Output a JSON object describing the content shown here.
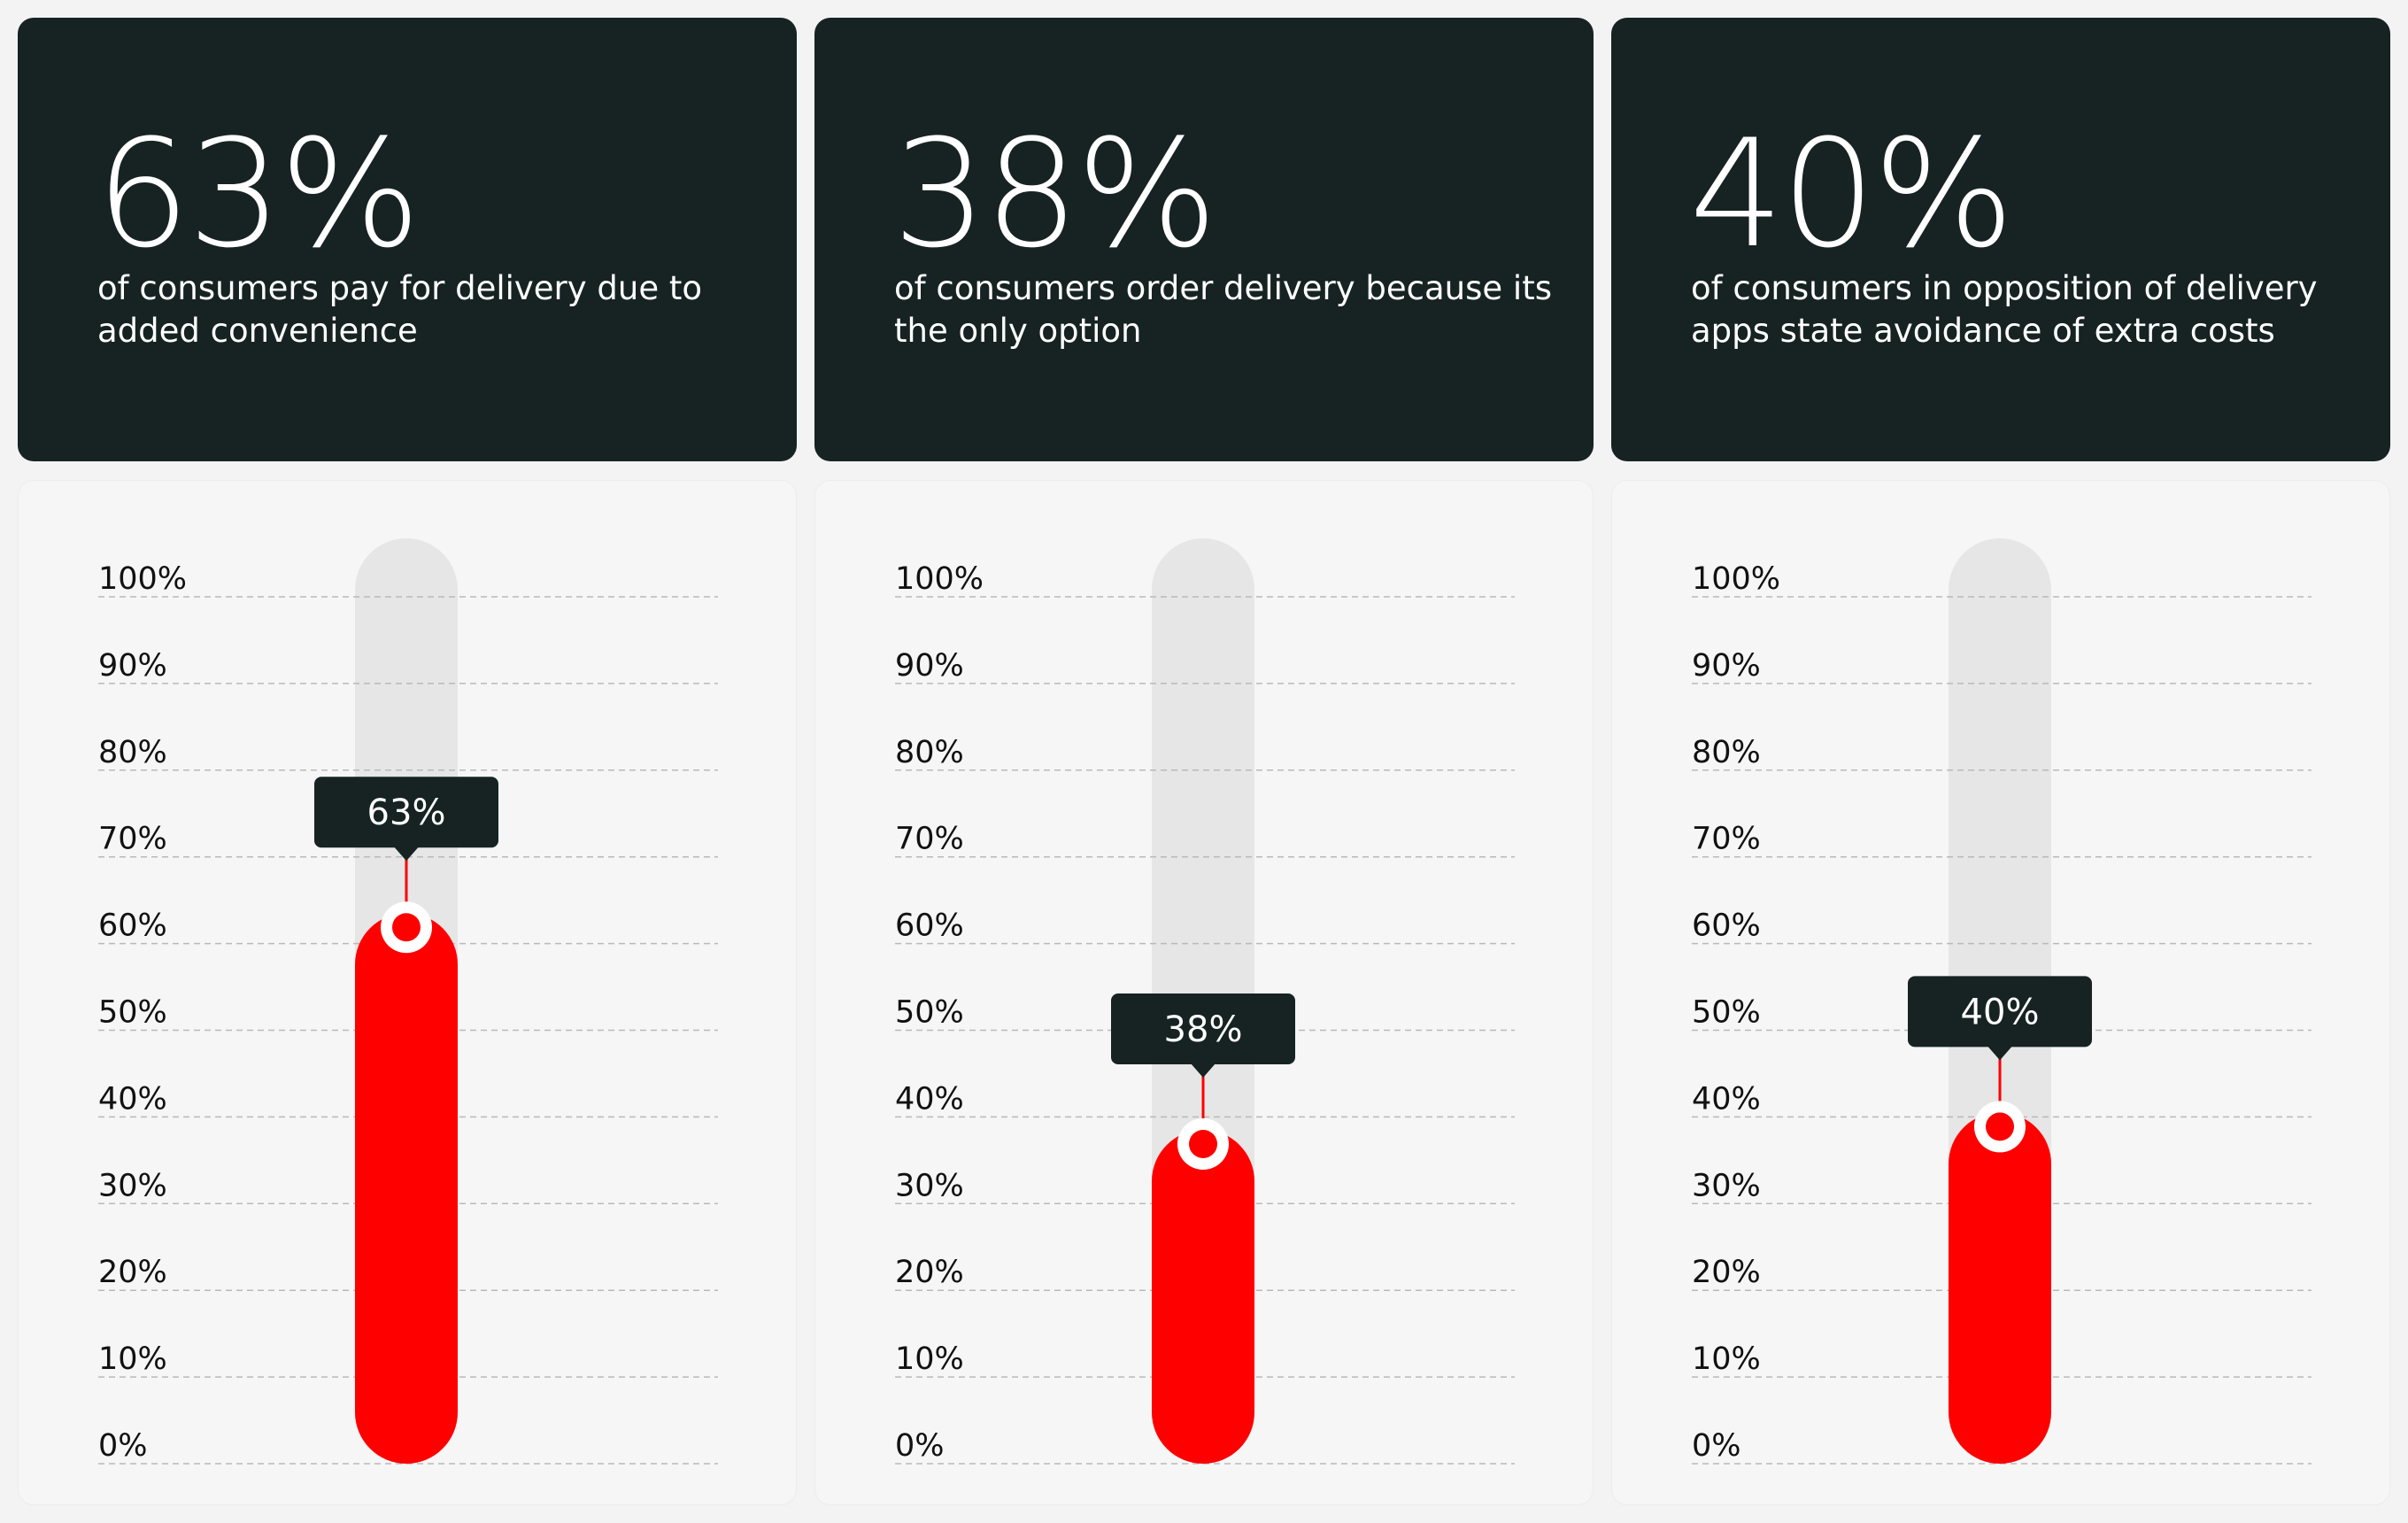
{
  "accent_color": "#ff0000",
  "dark_color": "#172323",
  "track_color": "#e6e6e6",
  "stats": [
    {
      "value": "63%",
      "description": "of consumers pay for delivery due to added convenience"
    },
    {
      "value": "38%",
      "description": "of consumers order delivery because its the only option"
    },
    {
      "value": "40%",
      "description": "of consumers in opposition of delivery apps state avoidance of extra costs"
    }
  ],
  "chart_data": [
    {
      "type": "bar",
      "values": [
        63
      ],
      "value_label": "63%",
      "ylim": [
        0,
        100
      ],
      "yticks": [
        "0%",
        "10%",
        "20%",
        "30%",
        "40%",
        "50%",
        "60%",
        "70%",
        "80%",
        "90%",
        "100%"
      ],
      "grid": true
    },
    {
      "type": "bar",
      "values": [
        38
      ],
      "value_label": "38%",
      "ylim": [
        0,
        100
      ],
      "yticks": [
        "0%",
        "10%",
        "20%",
        "30%",
        "40%",
        "50%",
        "60%",
        "70%",
        "80%",
        "90%",
        "100%"
      ],
      "grid": true
    },
    {
      "type": "bar",
      "values": [
        40
      ],
      "value_label": "40%",
      "ylim": [
        0,
        100
      ],
      "yticks": [
        "0%",
        "10%",
        "20%",
        "30%",
        "40%",
        "50%",
        "60%",
        "70%",
        "80%",
        "90%",
        "100%"
      ],
      "grid": true
    }
  ]
}
